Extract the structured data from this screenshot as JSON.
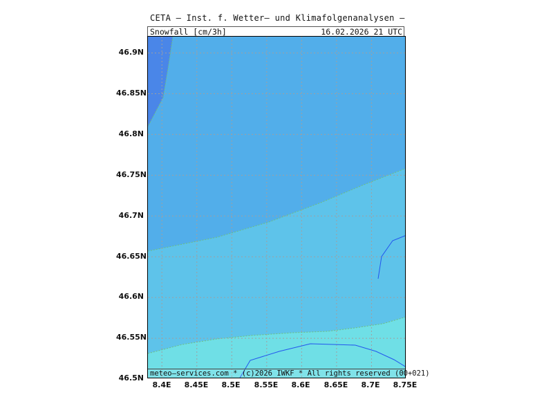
{
  "title": "CETA — Inst. f. Wetter— und Klimafolgenanalysen —",
  "variable_label": "Snowfall [cm/3h]",
  "valid_time": "16.02.2026 21 UTC",
  "footer": "meteo—services.com * (c)2026 IWKF * All rights reserved (00+021)",
  "colors": {
    "band_dark": "#4a86e8",
    "band_mid": "#52aeea",
    "band_light": "#5ec3ea",
    "band_lightest": "#6fdfe6",
    "contour_line": "#6fbf7c",
    "border_line": "#2255ee",
    "grid_line": "#a0a0a0"
  },
  "axes": {
    "lat_labels": [
      "46.9N",
      "46.85N",
      "46.8N",
      "46.75N",
      "46.7N",
      "46.65N",
      "46.6N",
      "46.55N",
      "46.5N"
    ],
    "lat_values": [
      46.9,
      46.85,
      46.8,
      46.75,
      46.7,
      46.65,
      46.6,
      46.55,
      46.5
    ],
    "lon_labels": [
      "8.4E",
      "8.45E",
      "8.5E",
      "8.55E",
      "8.6E",
      "8.65E",
      "8.7E",
      "8.75E"
    ],
    "lon_values": [
      8.4,
      8.45,
      8.5,
      8.55,
      8.6,
      8.65,
      8.7,
      8.75
    ],
    "lat_range": [
      46.5,
      46.92
    ],
    "lon_range": [
      8.38,
      8.75
    ]
  }
}
